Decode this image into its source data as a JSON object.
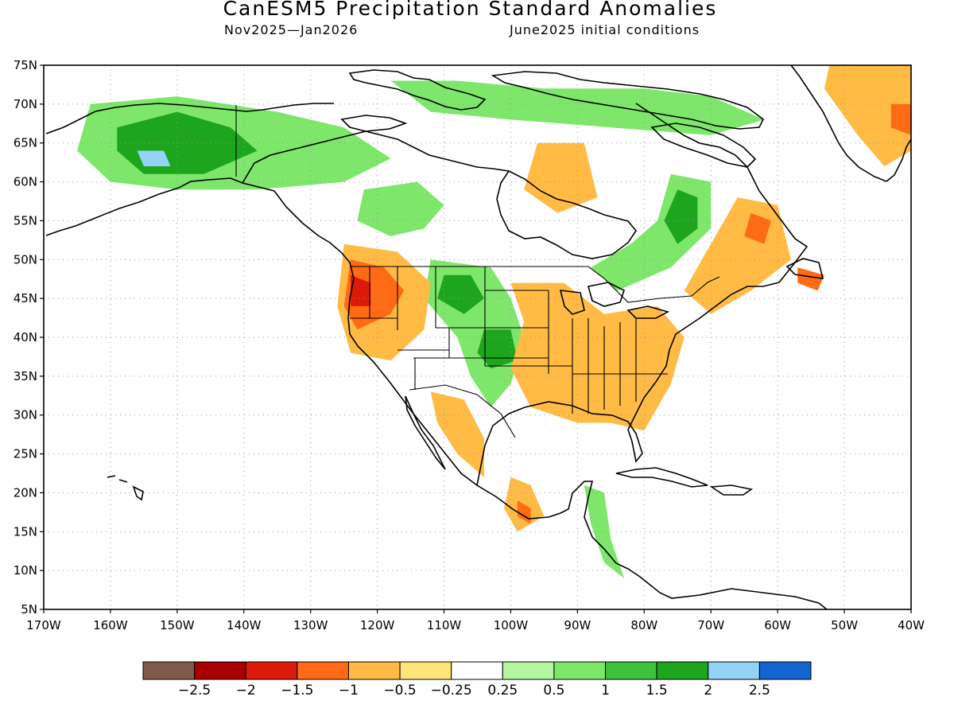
{
  "header": {
    "title": "CanESM5 Precipitation Standard Anomalies",
    "period": "Nov2025—Jan2026",
    "init": "June2025 initial conditions"
  },
  "map": {
    "lon_range": [
      -170,
      -40
    ],
    "lat_range": [
      5,
      75
    ],
    "lon_labels": [
      "170W",
      "160W",
      "150W",
      "140W",
      "130W",
      "120W",
      "110W",
      "100W",
      "90W",
      "80W",
      "70W",
      "60W",
      "50W",
      "40W"
    ],
    "lat_labels": [
      "5N",
      "10N",
      "15N",
      "20N",
      "25N",
      "30N",
      "35N",
      "40N",
      "45N",
      "50N",
      "55N",
      "60N",
      "65N",
      "70N",
      "75N"
    ],
    "grid": "dotted",
    "anomaly_regions": [
      {
        "label": "alaska-wet",
        "level": 1,
        "lonlat": [
          [
            -163,
            70
          ],
          [
            -150,
            71
          ],
          [
            -135,
            69
          ],
          [
            -125,
            67
          ],
          [
            -118,
            63
          ],
          [
            -125,
            60
          ],
          [
            -138,
            59
          ],
          [
            -150,
            59
          ],
          [
            -160,
            60
          ],
          [
            -165,
            64
          ]
        ]
      },
      {
        "label": "alaska-core",
        "level": 2,
        "lonlat": [
          [
            -159,
            67
          ],
          [
            -150,
            69
          ],
          [
            -142,
            67
          ],
          [
            -138,
            64
          ],
          [
            -146,
            61
          ],
          [
            -155,
            61
          ],
          [
            -159,
            64
          ]
        ]
      },
      {
        "label": "alaska-peak",
        "level": 3,
        "lonlat": [
          [
            -156,
            64
          ],
          [
            -152,
            64
          ],
          [
            -151,
            62
          ],
          [
            -155,
            62
          ]
        ]
      },
      {
        "label": "arctic-islands-wet",
        "level": 1,
        "lonlat": [
          [
            -118,
            73
          ],
          [
            -108,
            73
          ],
          [
            -95,
            72
          ],
          [
            -80,
            72
          ],
          [
            -70,
            71
          ],
          [
            -62,
            68
          ],
          [
            -70,
            66
          ],
          [
            -85,
            67
          ],
          [
            -100,
            68
          ],
          [
            -112,
            69
          ]
        ]
      },
      {
        "label": "western-canada-wet",
        "level": 1,
        "lonlat": [
          [
            -122,
            59
          ],
          [
            -114,
            60
          ],
          [
            -110,
            57
          ],
          [
            -113,
            54
          ],
          [
            -118,
            53
          ],
          [
            -123,
            55
          ]
        ]
      },
      {
        "label": "quebec-wet",
        "level": 1,
        "lonlat": [
          [
            -76,
            61
          ],
          [
            -70,
            60
          ],
          [
            -70,
            54
          ],
          [
            -76,
            49
          ],
          [
            -84,
            46
          ],
          [
            -88,
            49
          ],
          [
            -82,
            52
          ],
          [
            -78,
            55
          ]
        ]
      },
      {
        "label": "quebec-core",
        "level": 2,
        "lonlat": [
          [
            -75,
            59
          ],
          [
            -72,
            58
          ],
          [
            -72,
            54
          ],
          [
            -75,
            52
          ],
          [
            -77,
            55
          ]
        ]
      },
      {
        "label": "plains-wet",
        "level": 1,
        "lonlat": [
          [
            -112,
            50
          ],
          [
            -103,
            49
          ],
          [
            -100,
            45
          ],
          [
            -98,
            40
          ],
          [
            -100,
            34
          ],
          [
            -103,
            31
          ],
          [
            -106,
            35
          ],
          [
            -108,
            40
          ],
          [
            -113,
            45
          ]
        ]
      },
      {
        "label": "plains-core",
        "level": 2,
        "lonlat": [
          [
            -110,
            48
          ],
          [
            -106,
            48
          ],
          [
            -104,
            45
          ],
          [
            -107,
            43
          ],
          [
            -111,
            45
          ]
        ]
      },
      {
        "label": "kansas-core",
        "level": 2,
        "lonlat": [
          [
            -104,
            41
          ],
          [
            -100,
            41
          ],
          [
            -99,
            37
          ],
          [
            -103,
            36
          ],
          [
            -105,
            38
          ]
        ]
      },
      {
        "label": "central-america-wet",
        "level": 1,
        "lonlat": [
          [
            -89,
            21
          ],
          [
            -86,
            20
          ],
          [
            -85,
            14
          ],
          [
            -83,
            9
          ],
          [
            -86,
            11
          ],
          [
            -88,
            16
          ]
        ]
      },
      {
        "label": "pacific-nw-dry",
        "level": -1,
        "lonlat": [
          [
            -125,
            52
          ],
          [
            -117,
            51
          ],
          [
            -112,
            47
          ],
          [
            -113,
            41
          ],
          [
            -118,
            37
          ],
          [
            -124,
            38
          ],
          [
            -126,
            44
          ]
        ]
      },
      {
        "label": "pacific-nw-core",
        "level": -2,
        "lonlat": [
          [
            -124,
            50
          ],
          [
            -119,
            49
          ],
          [
            -116,
            46
          ],
          [
            -118,
            43
          ],
          [
            -123,
            41
          ],
          [
            -125,
            44
          ]
        ]
      },
      {
        "label": "pacific-nw-peak",
        "level": -3,
        "lonlat": [
          [
            -124,
            48
          ],
          [
            -121,
            47
          ],
          [
            -121,
            44
          ],
          [
            -124,
            44
          ]
        ]
      },
      {
        "label": "southeast-dry",
        "level": -1,
        "lonlat": [
          [
            -100,
            47
          ],
          [
            -92,
            47
          ],
          [
            -86,
            43
          ],
          [
            -78,
            44
          ],
          [
            -74,
            40
          ],
          [
            -76,
            34
          ],
          [
            -80,
            28
          ],
          [
            -85,
            29
          ],
          [
            -90,
            29
          ],
          [
            -97,
            31
          ],
          [
            -100,
            36
          ],
          [
            -98,
            42
          ]
        ]
      },
      {
        "label": "southwest-dry",
        "level": -1,
        "lonlat": [
          [
            -112,
            33
          ],
          [
            -107,
            32
          ],
          [
            -104,
            27
          ],
          [
            -104,
            22
          ],
          [
            -108,
            25
          ],
          [
            -111,
            29
          ]
        ]
      },
      {
        "label": "hudson-dry",
        "level": -1,
        "lonlat": [
          [
            -96,
            65
          ],
          [
            -89,
            65
          ],
          [
            -87,
            58
          ],
          [
            -93,
            56
          ],
          [
            -98,
            59
          ]
        ]
      },
      {
        "label": "maritimes-dry",
        "level": -1,
        "lonlat": [
          [
            -66,
            58
          ],
          [
            -60,
            57
          ],
          [
            -58,
            50
          ],
          [
            -64,
            46
          ],
          [
            -70,
            43
          ],
          [
            -74,
            46
          ],
          [
            -70,
            52
          ]
        ]
      },
      {
        "label": "maritimes-core",
        "level": -2,
        "lonlat": [
          [
            -64,
            56
          ],
          [
            -61,
            55
          ],
          [
            -62,
            52
          ],
          [
            -65,
            53
          ]
        ]
      },
      {
        "label": "newfoundland-core",
        "level": -2,
        "lonlat": [
          [
            -57,
            49
          ],
          [
            -53,
            48
          ],
          [
            -54,
            46
          ],
          [
            -57,
            47
          ]
        ]
      },
      {
        "label": "greenland-dry",
        "level": -1,
        "lonlat": [
          [
            -52,
            76
          ],
          [
            -40,
            76
          ],
          [
            -40,
            64
          ],
          [
            -44,
            62
          ],
          [
            -48,
            66
          ],
          [
            -53,
            72
          ]
        ]
      },
      {
        "label": "greenland-core",
        "level": -2,
        "lonlat": [
          [
            -43,
            70
          ],
          [
            -40,
            70
          ],
          [
            -40,
            66
          ],
          [
            -43,
            67
          ]
        ]
      },
      {
        "label": "mexico-dry",
        "level": -1,
        "lonlat": [
          [
            -100,
            22
          ],
          [
            -97,
            21
          ],
          [
            -95,
            17
          ],
          [
            -99,
            15
          ],
          [
            -101,
            18
          ]
        ]
      },
      {
        "label": "mexico-core",
        "level": -2,
        "lonlat": [
          [
            -99,
            19
          ],
          [
            -97,
            18
          ],
          [
            -97,
            16
          ],
          [
            -99,
            17
          ]
        ]
      }
    ]
  },
  "colorbar": {
    "colors": [
      "#7f5a4a",
      "#a70000",
      "#dd1a0a",
      "#ff6a14",
      "#ffbb44",
      "#ffe478",
      "#ffffff",
      "#b4f5a0",
      "#7ee66a",
      "#3ec23e",
      "#1ea51e",
      "#94d2f8",
      "#1464d2"
    ],
    "labels": [
      "−2.5",
      "−2",
      "−1.5",
      "−1",
      "−0.5",
      "−0.25",
      "0.25",
      "0.5",
      "1",
      "1.5",
      "2",
      "2.5"
    ]
  }
}
